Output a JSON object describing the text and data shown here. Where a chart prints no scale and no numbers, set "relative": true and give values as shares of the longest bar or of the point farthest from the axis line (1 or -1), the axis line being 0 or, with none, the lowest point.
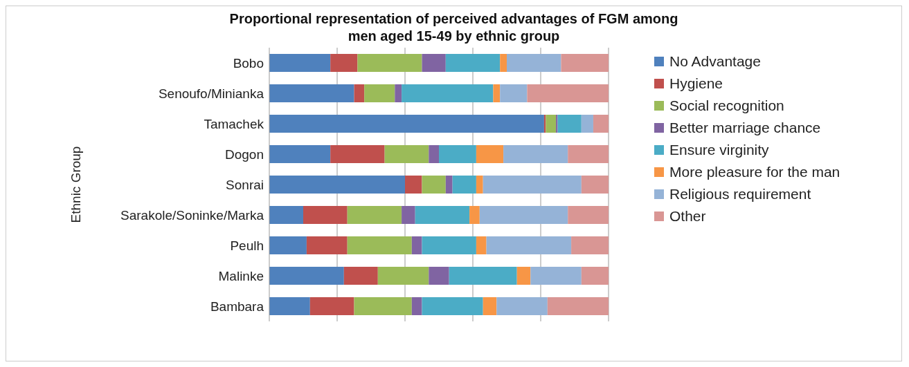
{
  "chart_data": {
    "type": "bar",
    "orientation": "horizontal",
    "stacked": true,
    "relative": true,
    "title": "Proportional representation of perceived advantages of FGM among men aged 15-49 by ethnic group",
    "ylabel": "Ethnic Group",
    "grid": "x",
    "legend": "right",
    "categories": [
      "Bobo",
      "Senoufo/Minianka",
      "Tamachek",
      "Dogon",
      "Sonrai",
      "Sarakole/Soninke/Marka",
      "Peulh",
      "Malinke",
      "Bambara"
    ],
    "series": [
      {
        "name": "No Advantage",
        "color": "#4f81bd",
        "values": [
          0.18,
          0.25,
          0.81,
          0.18,
          0.4,
          0.1,
          0.11,
          0.22,
          0.12
        ]
      },
      {
        "name": "Hygiene",
        "color": "#c0504d",
        "values": [
          0.08,
          0.03,
          0.005,
          0.16,
          0.05,
          0.13,
          0.12,
          0.1,
          0.13
        ]
      },
      {
        "name": "Social recognition",
        "color": "#9bbb59",
        "values": [
          0.19,
          0.09,
          0.03,
          0.13,
          0.07,
          0.16,
          0.19,
          0.15,
          0.17
        ]
      },
      {
        "name": "Better marriage chance",
        "color": "#8064a2",
        "values": [
          0.07,
          0.02,
          0.005,
          0.03,
          0.02,
          0.04,
          0.03,
          0.06,
          0.03
        ]
      },
      {
        "name": "Ensure virginity",
        "color": "#4bacc6",
        "values": [
          0.16,
          0.27,
          0.07,
          0.11,
          0.07,
          0.16,
          0.16,
          0.2,
          0.18
        ]
      },
      {
        "name": "More pleasure for the man",
        "color": "#f79646",
        "values": [
          0.02,
          0.02,
          0,
          0.08,
          0.02,
          0.03,
          0.03,
          0.04,
          0.04
        ]
      },
      {
        "name": "Religious requirement",
        "color": "#95b3d7",
        "values": [
          0.16,
          0.08,
          0.035,
          0.19,
          0.29,
          0.26,
          0.25,
          0.15,
          0.15
        ]
      },
      {
        "name": "Other",
        "color": "#d99694",
        "values": [
          0.14,
          0.24,
          0.045,
          0.12,
          0.08,
          0.12,
          0.11,
          0.08,
          0.18
        ]
      }
    ]
  }
}
